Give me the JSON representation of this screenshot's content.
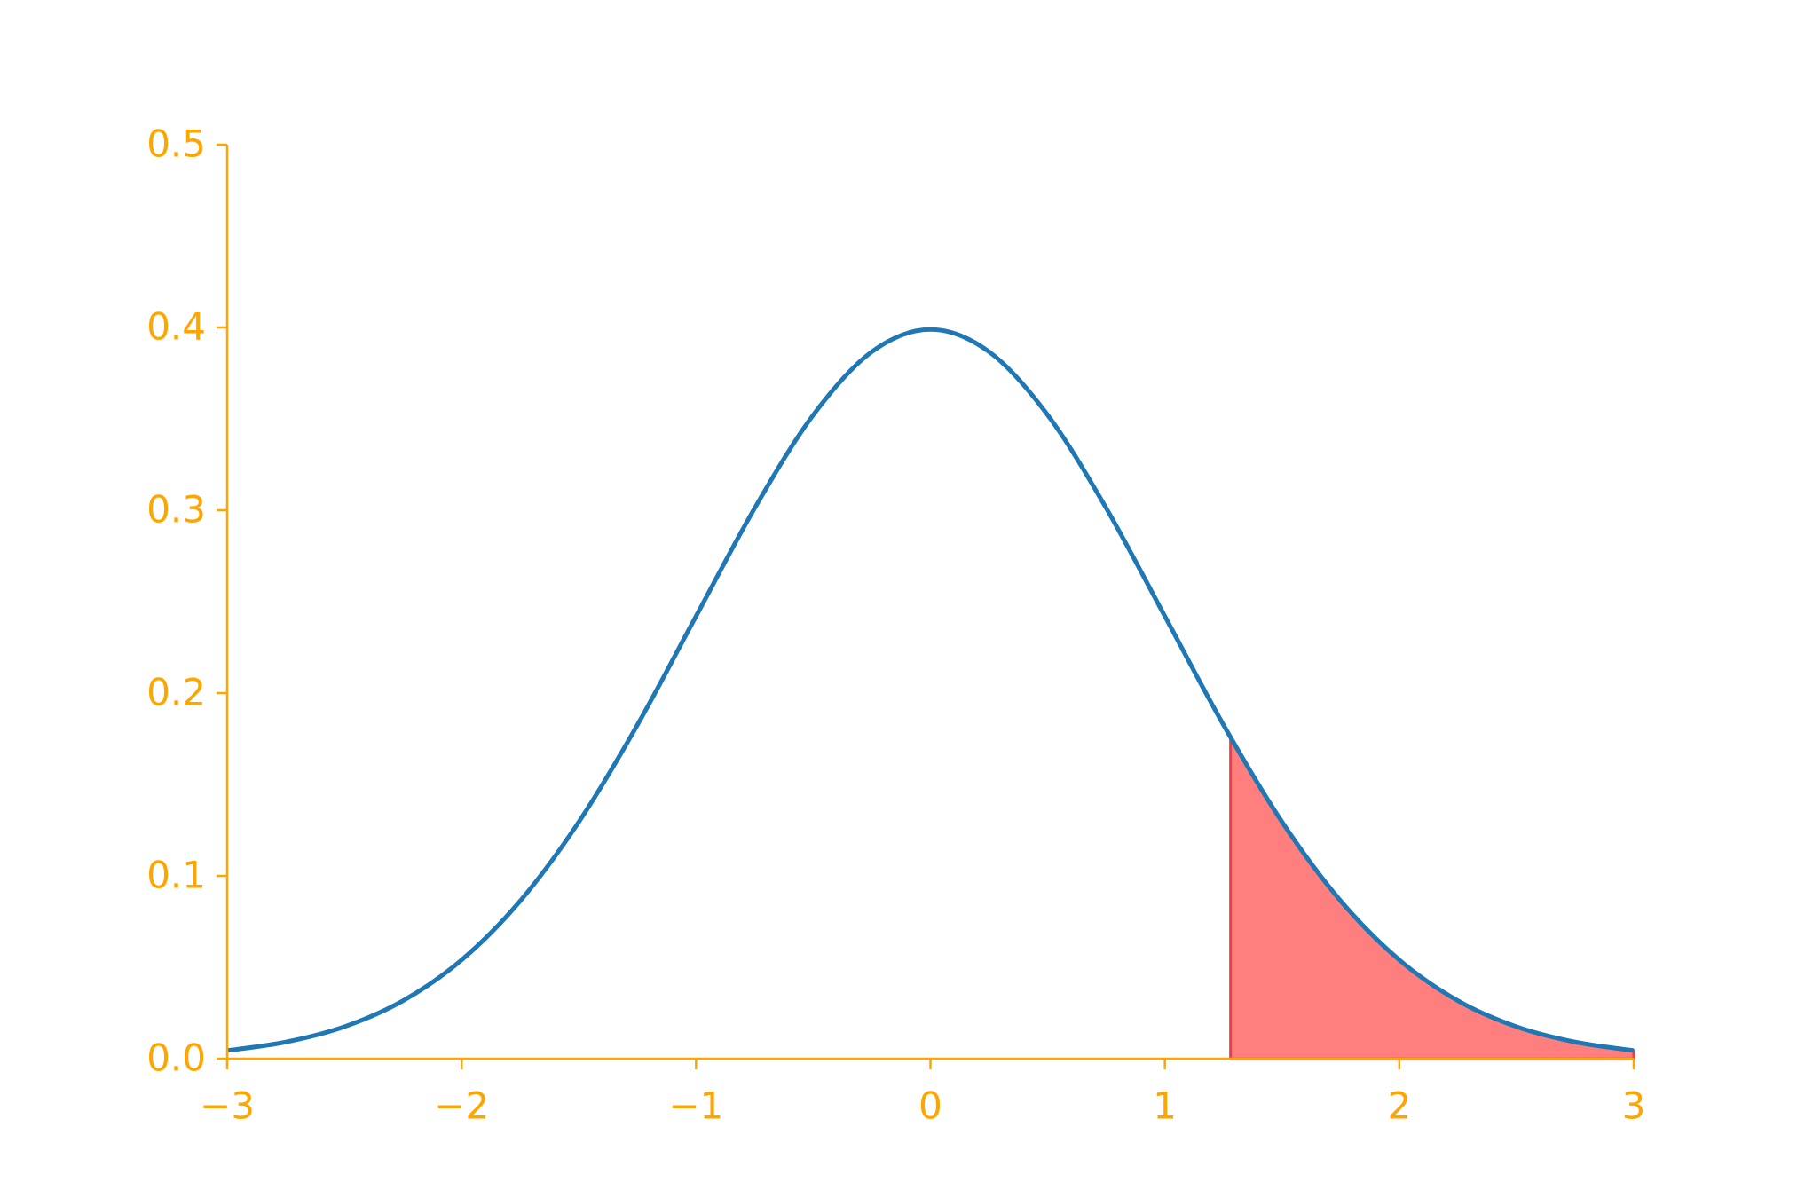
{
  "chart_data": {
    "type": "line",
    "xlim": [
      -3,
      3
    ],
    "ylim": [
      0,
      0.5
    ],
    "xticks": [
      {
        "value": -3,
        "label": "−3"
      },
      {
        "value": -2,
        "label": "−2"
      },
      {
        "value": -1,
        "label": "−1"
      },
      0,
      1,
      2,
      3
    ],
    "yticks": [
      {
        "value": 0,
        "label": "0.0"
      },
      0.1,
      0.2,
      0.3,
      0.4,
      0.5
    ],
    "axis_color": "#ffa500",
    "grid": false,
    "series": [
      {
        "type": "line",
        "color": "#1f77b4",
        "x": [
          -3,
          -2.75,
          -2.5,
          -2.25,
          -2,
          -1.75,
          -1.5,
          -1.25,
          -1,
          -0.75,
          -0.5,
          -0.25,
          0,
          0.25,
          0.5,
          0.75,
          1,
          1.25,
          1.5,
          1.75,
          2,
          2.25,
          2.5,
          2.75,
          3
        ],
        "values": [
          0.0044,
          0.0091,
          0.0175,
          0.0317,
          0.054,
          0.0863,
          0.1295,
          0.1826,
          0.242,
          0.3011,
          0.3521,
          0.3867,
          0.3989,
          0.3867,
          0.3521,
          0.3011,
          0.242,
          0.1826,
          0.1295,
          0.0863,
          0.054,
          0.0317,
          0.0175,
          0.0091,
          0.0044
        ]
      },
      {
        "type": "area",
        "color": "#ff7f7f",
        "edge_color": "#e8404a",
        "x": [
          1.28,
          1.5,
          1.75,
          2,
          2.25,
          2.5,
          2.75,
          3
        ],
        "values": [
          0.1758,
          0.1295,
          0.0863,
          0.054,
          0.0317,
          0.0175,
          0.0091,
          0.0044
        ]
      }
    ]
  }
}
